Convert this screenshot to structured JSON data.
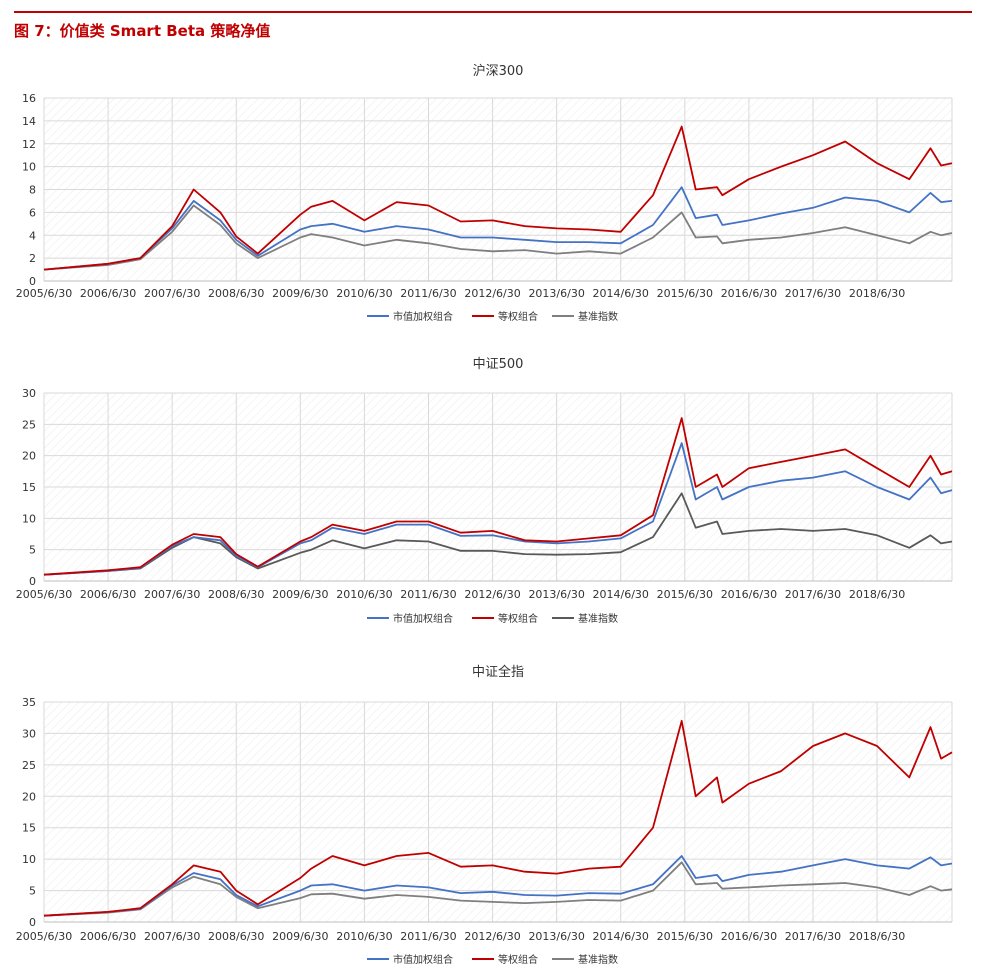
{
  "figure": {
    "title": "图 7：价值类 Smart Beta 策略净值"
  },
  "colors": {
    "accent": "#c00000",
    "cap_weighted": "#4472c4",
    "equal_weighted": "#c00000",
    "benchmark": "#7f7f7f",
    "benchmark_zz500": "#595959"
  },
  "chart_data": [
    {
      "type": "line",
      "title": "沪深300",
      "x_tick_labels": [
        "2005/6/30",
        "2006/6/30",
        "2007/6/30",
        "2008/6/30",
        "2009/6/30",
        "2010/6/30",
        "2011/6/30",
        "2012/6/30",
        "2013/6/30",
        "2014/6/30",
        "2015/6/30",
        "2016/6/30",
        "2017/6/30",
        "2018/6/30"
      ],
      "ylim": [
        0,
        16
      ],
      "y_ticks": [
        0,
        2,
        4,
        6,
        8,
        10,
        12,
        14,
        16
      ],
      "grid": true,
      "legend_position": "bottom",
      "x": [
        "2005/6/30",
        "2006/6/30",
        "2006/12/31",
        "2007/6/30",
        "2007/10/31",
        "2008/3/31",
        "2008/6/30",
        "2008/10/31",
        "2009/6/30",
        "2009/8/31",
        "2009/12/31",
        "2010/6/30",
        "2010/12/31",
        "2011/6/30",
        "2011/12/31",
        "2012/6/30",
        "2012/12/31",
        "2013/6/30",
        "2013/12/31",
        "2014/6/30",
        "2014/12/31",
        "2015/6/12",
        "2015/8/31",
        "2015/12/31",
        "2016/1/31",
        "2016/6/30",
        "2016/12/31",
        "2017/6/30",
        "2017/12/31",
        "2018/6/30",
        "2018/12/31",
        "2019/4/30",
        "2019/6/30",
        "2019/8/31"
      ],
      "series": [
        {
          "name": "市值加权组合",
          "values": [
            1.0,
            1.5,
            2.0,
            4.6,
            7.0,
            5.3,
            3.6,
            2.2,
            4.5,
            4.8,
            5.0,
            4.3,
            4.8,
            4.5,
            3.8,
            3.8,
            3.6,
            3.4,
            3.4,
            3.3,
            4.9,
            8.2,
            5.5,
            5.8,
            4.9,
            5.3,
            5.9,
            6.4,
            7.3,
            7.0,
            6.0,
            7.7,
            6.9,
            7.0
          ]
        },
        {
          "name": "等权组合",
          "values": [
            1.0,
            1.5,
            2.0,
            4.8,
            8.0,
            6.0,
            3.9,
            2.4,
            5.8,
            6.5,
            7.0,
            5.3,
            6.9,
            6.6,
            5.2,
            5.3,
            4.8,
            4.6,
            4.5,
            4.3,
            7.5,
            13.5,
            8.0,
            8.2,
            7.5,
            8.9,
            10.0,
            11.0,
            12.2,
            10.3,
            8.9,
            11.6,
            10.1,
            10.3
          ]
        },
        {
          "name": "基准指数",
          "values": [
            1.0,
            1.4,
            1.9,
            4.3,
            6.6,
            4.9,
            3.3,
            2.0,
            3.8,
            4.1,
            3.8,
            3.1,
            3.6,
            3.3,
            2.8,
            2.6,
            2.7,
            2.4,
            2.6,
            2.4,
            3.8,
            6.0,
            3.8,
            3.9,
            3.3,
            3.6,
            3.8,
            4.2,
            4.7,
            4.0,
            3.3,
            4.3,
            4.0,
            4.2
          ]
        }
      ]
    },
    {
      "type": "line",
      "title": "中证500",
      "x_tick_labels": [
        "2005/6/30",
        "2006/6/30",
        "2007/6/30",
        "2008/6/30",
        "2009/6/30",
        "2010/6/30",
        "2011/6/30",
        "2012/6/30",
        "2013/6/30",
        "2014/6/30",
        "2015/6/30",
        "2016/6/30",
        "2017/6/30",
        "2018/6/30"
      ],
      "ylim": [
        0,
        30
      ],
      "y_ticks": [
        0,
        5,
        10,
        15,
        20,
        25,
        30
      ],
      "grid": true,
      "legend_position": "bottom",
      "x": [
        "2005/6/30",
        "2006/6/30",
        "2006/12/31",
        "2007/6/30",
        "2007/10/31",
        "2008/3/31",
        "2008/6/30",
        "2008/10/31",
        "2009/6/30",
        "2009/8/31",
        "2009/12/31",
        "2010/6/30",
        "2010/12/31",
        "2011/6/30",
        "2011/12/31",
        "2012/6/30",
        "2012/12/31",
        "2013/6/30",
        "2013/12/31",
        "2014/6/30",
        "2014/12/31",
        "2015/6/12",
        "2015/8/31",
        "2015/12/31",
        "2016/1/31",
        "2016/6/30",
        "2016/12/31",
        "2017/6/30",
        "2017/12/31",
        "2018/6/30",
        "2018/12/31",
        "2019/4/30",
        "2019/6/30",
        "2019/8/31"
      ],
      "series": [
        {
          "name": "市值加权组合",
          "values": [
            1.0,
            1.6,
            2.1,
            5.6,
            7.0,
            6.5,
            4.0,
            2.2,
            6.0,
            6.5,
            8.5,
            7.5,
            9.0,
            9.0,
            7.2,
            7.3,
            6.3,
            6.0,
            6.3,
            6.8,
            9.5,
            22.0,
            13.0,
            15.0,
            13.0,
            15.0,
            16.0,
            16.5,
            17.5,
            15.0,
            13.0,
            16.5,
            14.0,
            14.5
          ]
        },
        {
          "name": "等权组合",
          "values": [
            1.0,
            1.7,
            2.2,
            5.8,
            7.5,
            7.0,
            4.3,
            2.3,
            6.3,
            7.0,
            9.0,
            8.0,
            9.5,
            9.5,
            7.7,
            8.0,
            6.5,
            6.3,
            6.8,
            7.3,
            10.5,
            26.0,
            15.0,
            17.0,
            15.0,
            18.0,
            19.0,
            20.0,
            21.0,
            18.0,
            15.0,
            20.0,
            17.0,
            17.5
          ]
        },
        {
          "name": "基准指数",
          "values": [
            1.0,
            1.6,
            2.0,
            5.3,
            7.0,
            6.0,
            3.8,
            2.0,
            4.5,
            5.0,
            6.5,
            5.2,
            6.5,
            6.3,
            4.8,
            4.8,
            4.3,
            4.2,
            4.3,
            4.6,
            7.0,
            14.0,
            8.5,
            9.5,
            7.5,
            8.0,
            8.3,
            8.0,
            8.3,
            7.3,
            5.3,
            7.3,
            6.0,
            6.3
          ]
        }
      ]
    },
    {
      "type": "line",
      "title": "中证全指",
      "x_tick_labels": [
        "2005/6/30",
        "2006/6/30",
        "2007/6/30",
        "2008/6/30",
        "2009/6/30",
        "2010/6/30",
        "2011/6/30",
        "2012/6/30",
        "2013/6/30",
        "2014/6/30",
        "2015/6/30",
        "2016/6/30",
        "2017/6/30",
        "2018/6/30"
      ],
      "ylim": [
        0,
        35
      ],
      "y_ticks": [
        0,
        5,
        10,
        15,
        20,
        25,
        30,
        35
      ],
      "grid": true,
      "legend_position": "bottom",
      "x": [
        "2005/6/30",
        "2006/6/30",
        "2006/12/31",
        "2007/6/30",
        "2007/10/31",
        "2008/3/31",
        "2008/6/30",
        "2008/10/31",
        "2009/6/30",
        "2009/8/31",
        "2009/12/31",
        "2010/6/30",
        "2010/12/31",
        "2011/6/30",
        "2011/12/31",
        "2012/6/30",
        "2012/12/31",
        "2013/6/30",
        "2013/12/31",
        "2014/6/30",
        "2014/12/31",
        "2015/6/12",
        "2015/8/31",
        "2015/12/31",
        "2016/1/31",
        "2016/6/30",
        "2016/12/31",
        "2017/6/30",
        "2017/12/31",
        "2018/6/30",
        "2018/12/31",
        "2019/4/30",
        "2019/6/30",
        "2019/8/31"
      ],
      "series": [
        {
          "name": "市值加权组合",
          "values": [
            1.0,
            1.6,
            2.1,
            5.8,
            7.8,
            6.8,
            4.3,
            2.5,
            5.0,
            5.8,
            6.0,
            5.0,
            5.8,
            5.5,
            4.6,
            4.8,
            4.3,
            4.2,
            4.6,
            4.5,
            6.0,
            10.5,
            7.0,
            7.5,
            6.5,
            7.5,
            8.0,
            9.0,
            10.0,
            9.0,
            8.5,
            10.3,
            9.0,
            9.3
          ]
        },
        {
          "name": "等权组合",
          "values": [
            1.0,
            1.6,
            2.2,
            6.0,
            9.0,
            8.0,
            5.0,
            2.8,
            7.0,
            8.5,
            10.5,
            9.0,
            10.5,
            11.0,
            8.8,
            9.0,
            8.0,
            7.7,
            8.5,
            8.8,
            15.0,
            32.0,
            20.0,
            23.0,
            19.0,
            22.0,
            24.0,
            28.0,
            30.0,
            28.0,
            23.0,
            31.0,
            26.0,
            27.0
          ]
        },
        {
          "name": "基准指数",
          "values": [
            1.0,
            1.5,
            2.0,
            5.5,
            7.2,
            6.0,
            4.0,
            2.2,
            3.8,
            4.4,
            4.5,
            3.7,
            4.3,
            4.0,
            3.4,
            3.2,
            3.0,
            3.2,
            3.5,
            3.4,
            5.0,
            9.5,
            6.0,
            6.2,
            5.3,
            5.5,
            5.8,
            6.0,
            6.2,
            5.5,
            4.3,
            5.7,
            5.0,
            5.2
          ]
        }
      ]
    }
  ]
}
